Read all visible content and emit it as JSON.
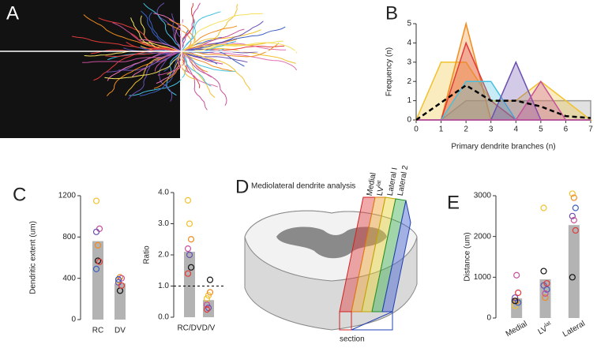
{
  "image_panel": {
    "panel": "A"
  },
  "diagram": {
    "panel": "D",
    "title": "Mediolateral dendrite analysis",
    "slab_labels": [
      "Medial",
      "LV",
      "Lateral I",
      "Lateral 2"
    ],
    "slab_label_sup": [
      null,
      "lat",
      null,
      null
    ],
    "section": "section"
  },
  "chart_data": [
    {
      "type": "area",
      "panel": "B",
      "x_label": "Primary dendrite branches (n)",
      "y_label": "Frequency (n)",
      "x": [
        0,
        1,
        2,
        3,
        4,
        5,
        6,
        7
      ],
      "xlim": [
        0,
        7
      ],
      "ylim": [
        0,
        5
      ],
      "xticks": [
        0,
        1,
        2,
        3,
        4,
        5,
        6,
        7
      ],
      "yticks": [
        0,
        1,
        2,
        3,
        4,
        5
      ],
      "series": [
        {
          "color": "#9a9a9a",
          "values": [
            0,
            0,
            1,
            1,
            1,
            1,
            1,
            1
          ]
        },
        {
          "color": "#f2c12e",
          "values": [
            0,
            3,
            3,
            1,
            1,
            2,
            1,
            0
          ]
        },
        {
          "color": "#f08c20",
          "values": [
            0,
            0,
            5,
            0,
            0,
            0,
            0,
            0
          ]
        },
        {
          "color": "#e03a3a",
          "values": [
            0,
            0,
            4,
            1,
            0,
            0,
            0,
            0
          ]
        },
        {
          "color": "#45c0e0",
          "values": [
            0,
            0,
            2,
            2,
            0,
            0,
            0,
            0
          ]
        },
        {
          "color": "#6a4fb0",
          "values": [
            0,
            0,
            0,
            0,
            3,
            0,
            0,
            0
          ]
        },
        {
          "color": "#c8509a",
          "values": [
            0,
            0,
            0,
            0,
            0,
            2,
            0,
            0
          ]
        },
        {
          "color": "#000000",
          "dashed": true,
          "values": [
            0,
            0.9,
            1.8,
            1.0,
            1.0,
            0.7,
            0.2,
            0.1
          ]
        }
      ]
    },
    {
      "type": "bar",
      "panel": "C",
      "y_label": "Dendritic extent (um)",
      "categories": [
        "RC",
        "DV"
      ],
      "values": [
        760,
        350
      ],
      "color": "#b3b3b3",
      "ylim": [
        0,
        1200
      ],
      "yticks": [
        0,
        400,
        800,
        1200
      ],
      "points": [
        {
          "color": "#f2c12e",
          "values": [
            1150,
            380
          ]
        },
        {
          "color": "#f08c20",
          "values": [
            720,
            410
          ]
        },
        {
          "color": "#c8509a",
          "values": [
            880,
            400
          ]
        },
        {
          "color": "#6a4fb0",
          "values": [
            850,
            360
          ]
        },
        {
          "color": "#111111",
          "values": [
            570,
            280
          ]
        },
        {
          "color": "#e03a3a",
          "values": [
            560,
            330
          ]
        },
        {
          "color": "#3a60c0",
          "values": [
            490,
            390
          ]
        }
      ]
    },
    {
      "type": "bar",
      "y_label": "Ratio",
      "categories": [
        "RC/DV",
        "D/V"
      ],
      "values": [
        2.1,
        0.55
      ],
      "color": "#b3b3b3",
      "ylim": [
        0,
        4
      ],
      "yticks": [
        {
          "value": 0,
          "label": "0.0"
        },
        {
          "value": 1,
          "label": "1.0"
        },
        {
          "value": 2,
          "label": "2.0"
        },
        {
          "value": 3,
          "label": "3.0"
        },
        {
          "value": 4,
          "label": "4.0"
        }
      ],
      "reference_line": 1,
      "points": [
        {
          "color": "#f2c12e",
          "values": [
            3.75,
            0.6
          ]
        },
        {
          "color": "#f2c12e",
          "values": [
            3.0,
            0.7
          ]
        },
        {
          "color": "#f08c20",
          "values": [
            2.5,
            0.8
          ]
        },
        {
          "color": "#c8509a",
          "values": [
            2.2,
            0.4
          ]
        },
        {
          "color": "#6a4fb0",
          "values": [
            2.0,
            0.3
          ]
        },
        {
          "color": "#111111",
          "values": [
            1.6,
            1.2
          ]
        },
        {
          "color": "#e03a3a",
          "values": [
            1.4,
            0.25
          ]
        }
      ]
    },
    {
      "type": "bar",
      "panel": "E",
      "y_label": "Distance (um)",
      "categories": [
        "Medial",
        "LV",
        "Lateral"
      ],
      "category_sup": [
        null,
        "lat",
        null
      ],
      "values": [
        480,
        950,
        2280
      ],
      "color": "#b3b3b3",
      "ylim": [
        0,
        3000
      ],
      "yticks": [
        0,
        1000,
        2000,
        3000
      ],
      "points": [
        {
          "color": "#f2c12e",
          "values": [
            300,
            2700,
            3050
          ]
        },
        {
          "color": "#f08c20",
          "values": [
            420,
            500,
            2950
          ]
        },
        {
          "color": "#3a60c0",
          "values": [
            380,
            700,
            2700
          ]
        },
        {
          "color": "#6a4fb0",
          "values": [
            500,
            800,
            2500
          ]
        },
        {
          "color": "#c8509a",
          "values": [
            1050,
            600,
            2400
          ]
        },
        {
          "color": "#e03a3a",
          "values": [
            620,
            850,
            2150
          ]
        },
        {
          "color": "#111111",
          "values": [
            420,
            1150,
            1000
          ]
        }
      ]
    }
  ]
}
